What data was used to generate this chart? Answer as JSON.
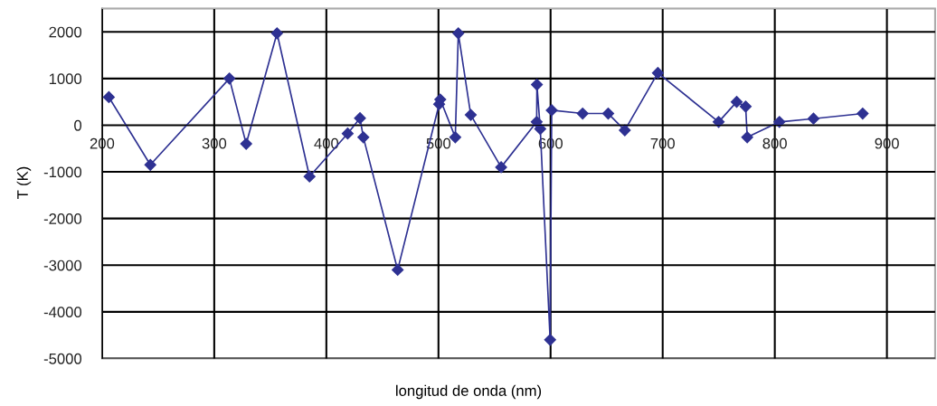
{
  "chart_data": {
    "type": "line",
    "xlabel": "longitud de onda (nm)",
    "ylabel": "T (K)",
    "xlim": [
      200,
      943
    ],
    "xticks": [
      200,
      300,
      400,
      500,
      600,
      700,
      800,
      900
    ],
    "ylim": [
      -5000,
      2500
    ],
    "yticks": [
      -5000,
      -4000,
      -3000,
      -2000,
      -1000,
      0,
      1000,
      2000
    ],
    "grid": true,
    "marker": "diamond",
    "line_style": "solid",
    "series": [
      {
        "color": "#2e3192",
        "x": [
          206,
          243,
          313.5,
          328.5,
          356,
          385,
          419,
          430,
          433,
          463.6,
          500.6,
          501.6,
          515,
          517.7,
          528.8,
          555.9,
          587.6,
          587.8,
          590.8,
          599.6,
          601,
          628.6,
          651.4,
          666.2,
          695.7,
          749.9,
          766,
          774,
          775.4,
          804.1,
          834.5,
          878.4
        ],
        "values": [
          600,
          -850,
          1000,
          -400,
          1970,
          -1100,
          -180,
          150,
          -260,
          -3100,
          450,
          550,
          -260,
          1970,
          220,
          -900,
          70,
          870,
          -80,
          -4600,
          320,
          250,
          250,
          -110,
          1120,
          70,
          500,
          400,
          -260,
          70,
          140,
          250
        ]
      }
    ]
  }
}
